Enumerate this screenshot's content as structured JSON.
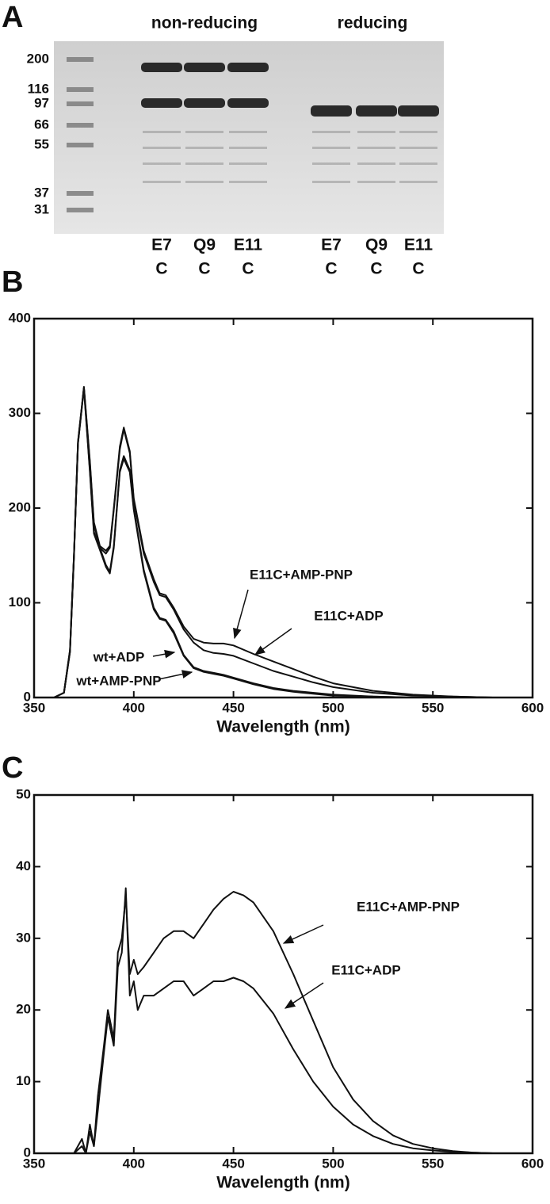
{
  "gel": {
    "panel_label": "A",
    "groups": [
      "non-reducing",
      "reducing"
    ],
    "markers": [
      200,
      116,
      97,
      66,
      55,
      37,
      31
    ],
    "lanes": [
      [
        "E7",
        "C"
      ],
      [
        "Q9",
        "C"
      ],
      [
        "E11",
        "C"
      ],
      [
        "E7",
        "C"
      ],
      [
        "Q9",
        "C"
      ],
      [
        "E11",
        "C"
      ]
    ]
  },
  "chart_data": [
    {
      "type": "line",
      "panel_label": "B",
      "x_label": "Wavelength (nm)",
      "xlim": [
        350,
        600
      ],
      "xticks": [
        350,
        400,
        450,
        500,
        550,
        600
      ],
      "ylim": [
        0,
        400
      ],
      "yticks": [
        0,
        100,
        200,
        300,
        400
      ],
      "x": [
        350,
        360,
        365,
        368,
        370,
        372,
        375,
        378,
        380,
        383,
        386,
        388,
        390,
        393,
        395,
        398,
        400,
        405,
        410,
        413,
        416,
        420,
        425,
        430,
        435,
        440,
        445,
        450,
        460,
        470,
        480,
        490,
        500,
        520,
        540,
        560,
        580,
        600
      ],
      "series": [
        {
          "name": "E11C+AMP-PNP",
          "color": "#111111",
          "values": [
            0,
            0,
            5,
            50,
            150,
            270,
            328,
            250,
            185,
            160,
            155,
            160,
            200,
            265,
            285,
            260,
            210,
            155,
            125,
            110,
            108,
            95,
            75,
            62,
            58,
            57,
            57,
            55,
            46,
            38,
            30,
            22,
            15,
            7,
            3,
            1,
            0,
            0
          ]
        },
        {
          "name": "E11C+ADP",
          "color": "#111111",
          "values": [
            0,
            0,
            5,
            50,
            150,
            270,
            327,
            248,
            183,
            158,
            152,
            158,
            198,
            262,
            283,
            258,
            208,
            152,
            122,
            108,
            106,
            93,
            72,
            58,
            50,
            47,
            46,
            44,
            36,
            28,
            22,
            16,
            11,
            5,
            2,
            1,
            0,
            0
          ]
        },
        {
          "name": "wt+ADP",
          "color": "#111111",
          "values": [
            0,
            0,
            5,
            48,
            148,
            268,
            327,
            240,
            175,
            158,
            140,
            133,
            160,
            240,
            255,
            240,
            200,
            135,
            95,
            84,
            82,
            70,
            45,
            32,
            28,
            26,
            24,
            21,
            15,
            10,
            7,
            5,
            3,
            1,
            0,
            0,
            0,
            0
          ]
        },
        {
          "name": "wt+AMP-PNP",
          "color": "#111111",
          "values": [
            0,
            0,
            5,
            48,
            148,
            268,
            326,
            238,
            173,
            156,
            138,
            131,
            158,
            238,
            252,
            238,
            198,
            133,
            93,
            83,
            81,
            68,
            44,
            31,
            27,
            25,
            23,
            20,
            14,
            9,
            6,
            4,
            2,
            1,
            0,
            0,
            0,
            0
          ]
        }
      ],
      "annotations": [
        "E11C+AMP-PNP",
        "E11C+ADP",
        "wt+ADP",
        "wt+AMP-PNP"
      ]
    },
    {
      "type": "line",
      "panel_label": "C",
      "x_label": "Wavelength (nm)",
      "xlim": [
        350,
        600
      ],
      "xticks": [
        350,
        400,
        450,
        500,
        550,
        600
      ],
      "ylim": [
        0,
        50
      ],
      "yticks": [
        0,
        10,
        20,
        30,
        40,
        50
      ],
      "x": [
        350,
        370,
        374,
        376,
        378,
        380,
        382,
        385,
        387,
        390,
        392,
        394,
        396,
        398,
        400,
        402,
        405,
        410,
        415,
        420,
        425,
        430,
        435,
        440,
        445,
        450,
        455,
        460,
        470,
        480,
        490,
        500,
        510,
        520,
        530,
        540,
        550,
        560,
        570,
        580,
        590,
        600
      ],
      "series": [
        {
          "name": "E11C+AMP-PNP",
          "color": "#111111",
          "values": [
            0,
            0,
            2,
            0,
            4,
            1,
            8,
            15,
            20,
            16,
            28,
            30,
            36,
            25,
            27,
            25,
            26,
            28,
            30,
            31,
            31,
            30,
            32,
            34,
            35.5,
            36.5,
            36,
            35,
            31,
            25,
            18.5,
            12,
            7.5,
            4.5,
            2.5,
            1.3,
            0.7,
            0.3,
            0.1,
            0,
            0,
            0
          ]
        },
        {
          "name": "E11C+ADP",
          "color": "#111111",
          "values": [
            0,
            0,
            1,
            0,
            3,
            1,
            6,
            14,
            19,
            15,
            26,
            28,
            37,
            22,
            24,
            20,
            22,
            22,
            23,
            24,
            24,
            22,
            23,
            24,
            24,
            24.5,
            24,
            23,
            19.5,
            14.5,
            10,
            6.5,
            4,
            2.4,
            1.3,
            0.7,
            0.4,
            0.2,
            0.1,
            0,
            0,
            0
          ]
        }
      ],
      "annotations": [
        "E11C+AMP-PNP",
        "E11C+ADP"
      ]
    }
  ]
}
